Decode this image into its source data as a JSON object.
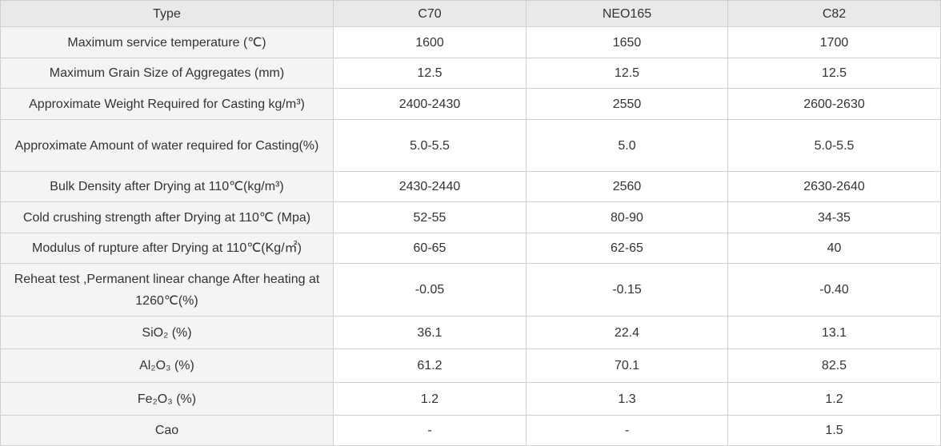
{
  "table": {
    "header": [
      "Type",
      "C70",
      "NEO165",
      "C82"
    ],
    "rows": [
      [
        "Maximum service temperature (℃)",
        "1600",
        "1650",
        "1700"
      ],
      [
        "Maximum Grain Size of Aggregates (mm)",
        "12.5",
        "12.5",
        "12.5"
      ],
      [
        "Approximate Weight Required for Casting kg/m³)",
        "2400-2430",
        "2550",
        "2600-2630"
      ],
      [
        "Approximate Amount of water required for Casting(%)",
        "5.0-5.5",
        "5.0",
        "5.0-5.5"
      ],
      [
        "Bulk Density after Drying at 110℃(kg/m³)",
        "2430-2440",
        "2560",
        "2630-2640"
      ],
      [
        "Cold crushing strength after Drying at 110℃ (Mpa)",
        "52-55",
        "80-90",
        "34-35"
      ],
      [
        "Modulus of rupture after Drying at 110℃(Kg/㎡)",
        "60-65",
        "62-65",
        "40"
      ],
      [
        "Reheat test ,Permanent linear change After heating at 1260℃(%)",
        "-0.05",
        "-0.15",
        "-0.40"
      ],
      [
        "SiO₂ (%)",
        "36.1",
        "22.4",
        "13.1"
      ],
      [
        "Al₂O₃ (%)",
        "61.2",
        "70.1",
        "82.5"
      ],
      [
        "Fe₂O₃ (%)",
        "1.2",
        "1.3",
        "1.2"
      ],
      [
        "Cao",
        "-",
        "-",
        "1.5"
      ]
    ]
  }
}
